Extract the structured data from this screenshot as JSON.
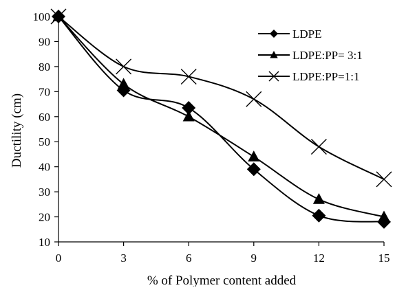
{
  "chart_data": {
    "type": "line",
    "title": "",
    "xlabel": "% of Polymer content added",
    "ylabel": "Ductility (cm)",
    "x": [
      0,
      3,
      6,
      9,
      12,
      15
    ],
    "x_ticks": [
      "0",
      "3",
      "6",
      "9",
      "12",
      "15"
    ],
    "y_ticks": [
      "10",
      "20",
      "30",
      "40",
      "50",
      "60",
      "70",
      "80",
      "90",
      "100"
    ],
    "xlim": [
      0,
      15
    ],
    "ylim": [
      10,
      100
    ],
    "grid": false,
    "legend_position": "top-right",
    "series": [
      {
        "name": "LDPE",
        "marker": "diamond",
        "color": "#000000",
        "values": [
          100,
          70.5,
          63.5,
          39,
          20.5,
          18
        ]
      },
      {
        "name": "LDPE:PP= 3:1",
        "marker": "triangle",
        "color": "#000000",
        "values": [
          100,
          73,
          60,
          44,
          27,
          20
        ]
      },
      {
        "name": "LDPE:PP=1:1",
        "marker": "x",
        "color": "#000000",
        "values": [
          100,
          80,
          76,
          67,
          48,
          35
        ]
      }
    ]
  }
}
